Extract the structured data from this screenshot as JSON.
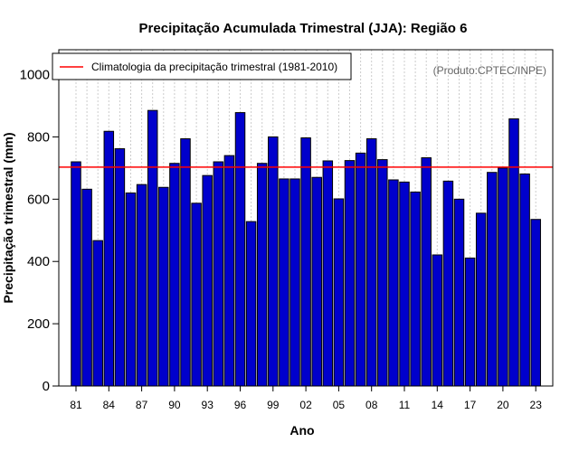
{
  "chart_data": {
    "type": "bar",
    "title": "Precipitação Acumulada Trimestral (JJA): Região 6",
    "xlabel": "Ano",
    "ylabel": "Precipitação trimestral (mm)",
    "ylim": [
      0,
      1080
    ],
    "yticks": [
      0,
      200,
      400,
      600,
      800,
      1000
    ],
    "xtick_labels": [
      "81",
      "84",
      "87",
      "90",
      "93",
      "96",
      "99",
      "02",
      "05",
      "08",
      "11",
      "14",
      "17",
      "20",
      "23"
    ],
    "xtick_years": [
      1981,
      1984,
      1987,
      1990,
      1993,
      1996,
      1999,
      2002,
      2005,
      2008,
      2011,
      2014,
      2017,
      2020,
      2023
    ],
    "categories": [
      1981,
      1982,
      1983,
      1984,
      1985,
      1986,
      1987,
      1988,
      1989,
      1990,
      1991,
      1992,
      1993,
      1994,
      1995,
      1996,
      1997,
      1998,
      1999,
      2000,
      2001,
      2002,
      2003,
      2004,
      2005,
      2006,
      2007,
      2008,
      2009,
      2010,
      2011,
      2012,
      2013,
      2014,
      2015,
      2016,
      2017,
      2018,
      2019,
      2020,
      2021,
      2022,
      2023
    ],
    "values": [
      720,
      632,
      467,
      818,
      762,
      620,
      647,
      885,
      638,
      715,
      794,
      587,
      676,
      720,
      740,
      878,
      528,
      715,
      800,
      665,
      665,
      797,
      670,
      723,
      601,
      724,
      748,
      794,
      727,
      662,
      655,
      623,
      733,
      421,
      658,
      600,
      411,
      555,
      686,
      700,
      858,
      681,
      535
    ],
    "climatology": 703,
    "legend": {
      "entry": "Climatologia da precipitação trimestral (1981-2010)",
      "position": "top-left"
    },
    "annotation": "(Produto:CPTEC/INPE)",
    "grid": "vertical dotted",
    "colors": {
      "bar": "#0000cc",
      "bar_edge": "#000000",
      "climatology_line": "#ff0000",
      "grid": "#cccccc",
      "annotation": "#666666"
    }
  }
}
